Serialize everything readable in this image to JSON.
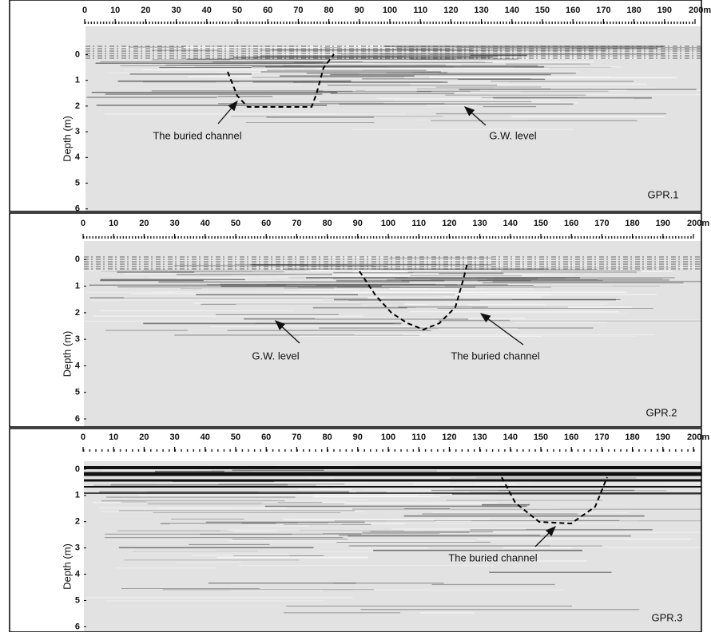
{
  "chart_data": [
    {
      "type": "radargram",
      "ylabel": "Depth (m)",
      "panel_label": "GPR.1",
      "annotations": [
        "The buried channel",
        "G.W. level"
      ],
      "xlim": [
        0,
        200
      ],
      "ylim": [
        -1.1,
        6.1
      ],
      "xticks": [
        0,
        10,
        20,
        30,
        40,
        50,
        60,
        70,
        80,
        90,
        100,
        110,
        120,
        130,
        140,
        150,
        160,
        170,
        180,
        190,
        {
          "value": 200,
          "label": "200m"
        }
      ],
      "yticks": [
        0,
        1,
        2,
        3,
        4,
        5,
        6
      ]
    },
    {
      "type": "radargram",
      "ylabel": "Depth (m)",
      "panel_label": "GPR.2",
      "annotations": [
        "G.W. level",
        "The buried channel"
      ],
      "xlim": [
        0,
        200
      ],
      "ylim": [
        -0.7,
        6.3
      ],
      "xticks": [
        0,
        10,
        20,
        30,
        40,
        50,
        60,
        70,
        80,
        90,
        100,
        110,
        120,
        130,
        140,
        150,
        160,
        170,
        180,
        190,
        {
          "value": 200,
          "label": "200m"
        }
      ],
      "yticks": [
        0,
        1,
        2,
        3,
        4,
        5,
        6
      ]
    },
    {
      "type": "radargram",
      "ylabel": "Depth (m)",
      "panel_label": "GPR.3",
      "annotations": [
        "The buried channel"
      ],
      "xlim": [
        0,
        200
      ],
      "ylim": [
        -0.3,
        6.2
      ],
      "xticks": [
        0,
        10,
        20,
        30,
        40,
        50,
        60,
        70,
        80,
        90,
        100,
        110,
        120,
        130,
        140,
        150,
        160,
        170,
        180,
        190,
        {
          "value": 200,
          "label": "200m"
        }
      ],
      "yticks": [
        0,
        1,
        2,
        3,
        4,
        5,
        6
      ]
    }
  ]
}
